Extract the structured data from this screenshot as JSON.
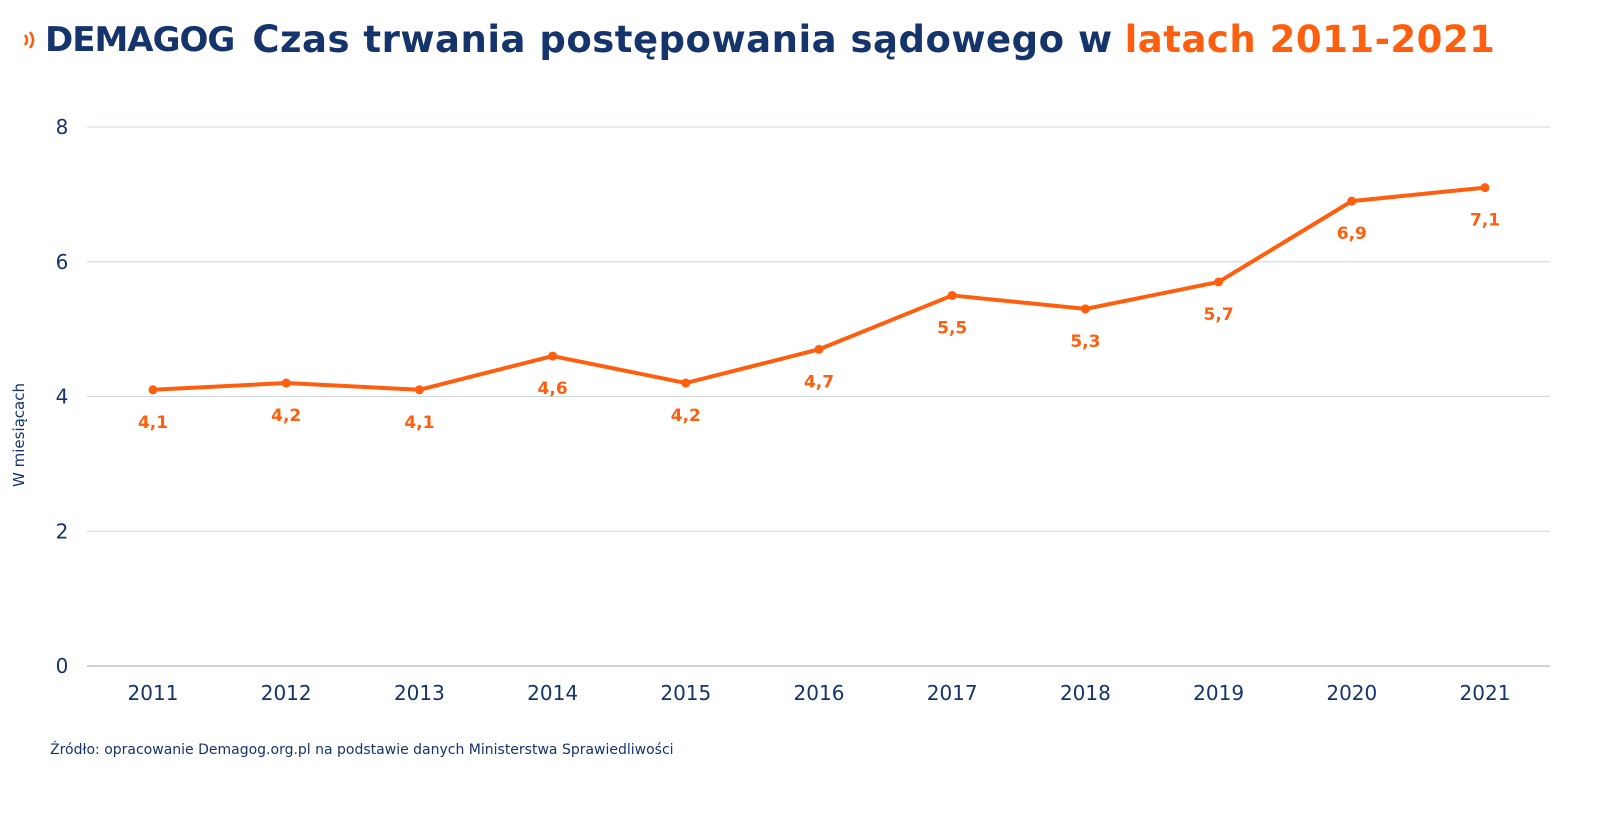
{
  "logo_text": "DEMAGOG",
  "title_part1": "Czas trwania postępowania sądowego w",
  "title_part2": "latach 2011-2021",
  "source": "Źródło: opracowanie Demagog.org.pl na podstawie danych Ministerstwa Sprawiedliwości",
  "colors": {
    "navy": "#14346b",
    "orange": "#fe5f0f",
    "grid": "#cfd6e0"
  },
  "chart_data": {
    "type": "line",
    "title": "Czas trwania postępowania sądowego w latach 2011-2021",
    "xlabel": "",
    "ylabel": "W miesiącach",
    "ylim": [
      0,
      8
    ],
    "yticks": [
      0,
      2,
      4,
      6,
      8
    ],
    "grid": true,
    "categories": [
      "2011",
      "2012",
      "2013",
      "2014",
      "2015",
      "2016",
      "2017",
      "2018",
      "2019",
      "2020",
      "2021"
    ],
    "values": [
      4.1,
      4.2,
      4.1,
      4.6,
      4.2,
      4.7,
      5.5,
      5.3,
      5.7,
      6.9,
      7.1
    ],
    "data_labels": [
      "4,1",
      "4,2",
      "4,1",
      "4,6",
      "4,2",
      "4,7",
      "5,5",
      "5,3",
      "5,7",
      "6,9",
      "7,1"
    ]
  }
}
